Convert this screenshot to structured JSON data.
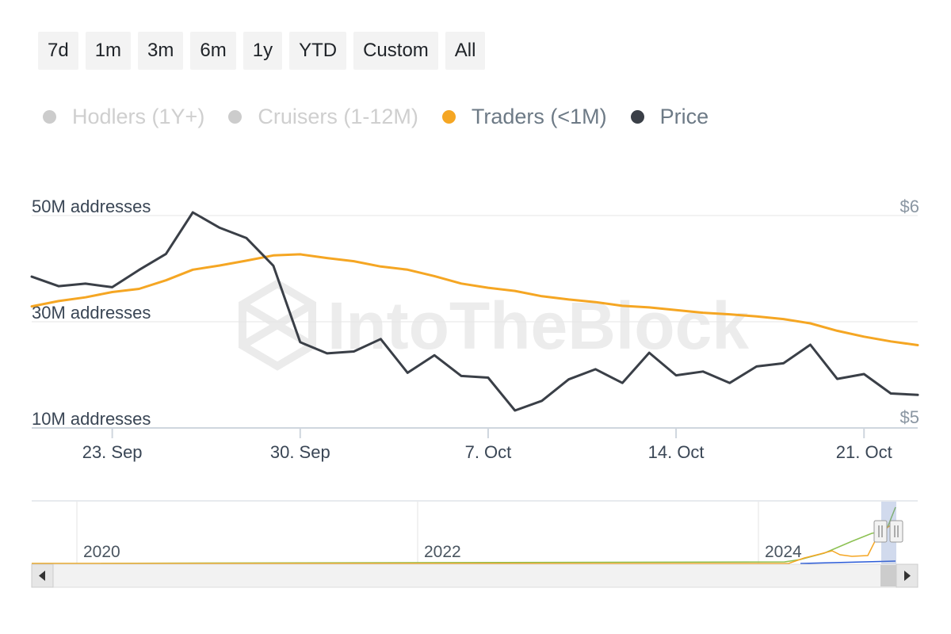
{
  "range_buttons": [
    "7d",
    "1m",
    "3m",
    "6m",
    "1y",
    "YTD",
    "Custom",
    "All"
  ],
  "legend": [
    {
      "label": "Hodlers (1Y+)",
      "color": "#cccccc",
      "enabled": false
    },
    {
      "label": "Cruisers (1-12M)",
      "color": "#cccccc",
      "enabled": false
    },
    {
      "label": "Traders (<1M)",
      "color": "#f5a623",
      "enabled": true
    },
    {
      "label": "Price",
      "color": "#3a3f47",
      "enabled": true
    }
  ],
  "watermark": "IntoTheBlock",
  "chart_data": {
    "type": "line",
    "x_start": "2024-09-20",
    "x_end": "2024-10-23",
    "x_ticks": [
      "23. Sep",
      "30. Sep",
      "7. Oct",
      "14. Oct",
      "21. Oct"
    ],
    "y_left": {
      "unit_label": "addresses",
      "ticks": [
        10000000,
        30000000,
        50000000
      ],
      "tick_labels": [
        "10M addresses",
        "30M addresses",
        "50M addresses"
      ],
      "range": [
        10000000,
        50000000
      ]
    },
    "y_right": {
      "tick_labels": [
        "$5",
        "$6"
      ],
      "range": [
        5,
        6
      ]
    },
    "series": [
      {
        "name": "Traders (<1M)",
        "axis": "left",
        "color": "#f5a623",
        "x": [
          "2024-09-20",
          "2024-09-21",
          "2024-09-22",
          "2024-09-23",
          "2024-09-24",
          "2024-09-25",
          "2024-09-26",
          "2024-09-27",
          "2024-09-28",
          "2024-09-29",
          "2024-09-30",
          "2024-10-01",
          "2024-10-02",
          "2024-10-03",
          "2024-10-04",
          "2024-10-05",
          "2024-10-06",
          "2024-10-07",
          "2024-10-08",
          "2024-10-09",
          "2024-10-10",
          "2024-10-11",
          "2024-10-12",
          "2024-10-13",
          "2024-10-14",
          "2024-10-15",
          "2024-10-16",
          "2024-10-17",
          "2024-10-18",
          "2024-10-19",
          "2024-10-20",
          "2024-10-21",
          "2024-10-22",
          "2024-10-23"
        ],
        "values": [
          32.9,
          33.9,
          34.6,
          35.6,
          36.2,
          37.8,
          39.8,
          40.6,
          41.5,
          42.5,
          42.7,
          42.0,
          41.4,
          40.4,
          39.8,
          38.6,
          37.2,
          36.4,
          35.8,
          34.8,
          34.2,
          33.7,
          33.0,
          32.7,
          32.2,
          31.7,
          31.4,
          31.0,
          30.5,
          29.7,
          28.3,
          27.2,
          26.3,
          25.6
        ]
      },
      {
        "name": "Price",
        "axis": "right",
        "color": "#3a3f47",
        "x": [
          "2024-09-20",
          "2024-09-21",
          "2024-09-22",
          "2024-09-23",
          "2024-09-24",
          "2024-09-25",
          "2024-09-26",
          "2024-09-27",
          "2024-09-28",
          "2024-09-29",
          "2024-09-30",
          "2024-10-01",
          "2024-10-02",
          "2024-10-03",
          "2024-10-04",
          "2024-10-05",
          "2024-10-06",
          "2024-10-07",
          "2024-10-08",
          "2024-10-09",
          "2024-10-10",
          "2024-10-11",
          "2024-10-12",
          "2024-10-13",
          "2024-10-14",
          "2024-10-15",
          "2024-10-16",
          "2024-10-17",
          "2024-10-18",
          "2024-10-19",
          "2024-10-20",
          "2024-10-21",
          "2024-10-22",
          "2024-10-23"
        ],
        "values": [
          5.665,
          5.62,
          5.632,
          5.615,
          5.697,
          5.773,
          5.97,
          5.897,
          5.848,
          5.717,
          5.354,
          5.301,
          5.31,
          5.369,
          5.209,
          5.292,
          5.194,
          5.186,
          5.03,
          5.076,
          5.178,
          5.226,
          5.161,
          5.304,
          5.197,
          5.215,
          5.161,
          5.239,
          5.254,
          5.342,
          5.18,
          5.203,
          5.111,
          5.104
        ]
      }
    ],
    "navigator": {
      "year_labels": [
        "2020",
        "2022",
        "2024"
      ],
      "series_colors": [
        "#8cc152",
        "#f5a623",
        "#2b5bd7"
      ]
    }
  }
}
